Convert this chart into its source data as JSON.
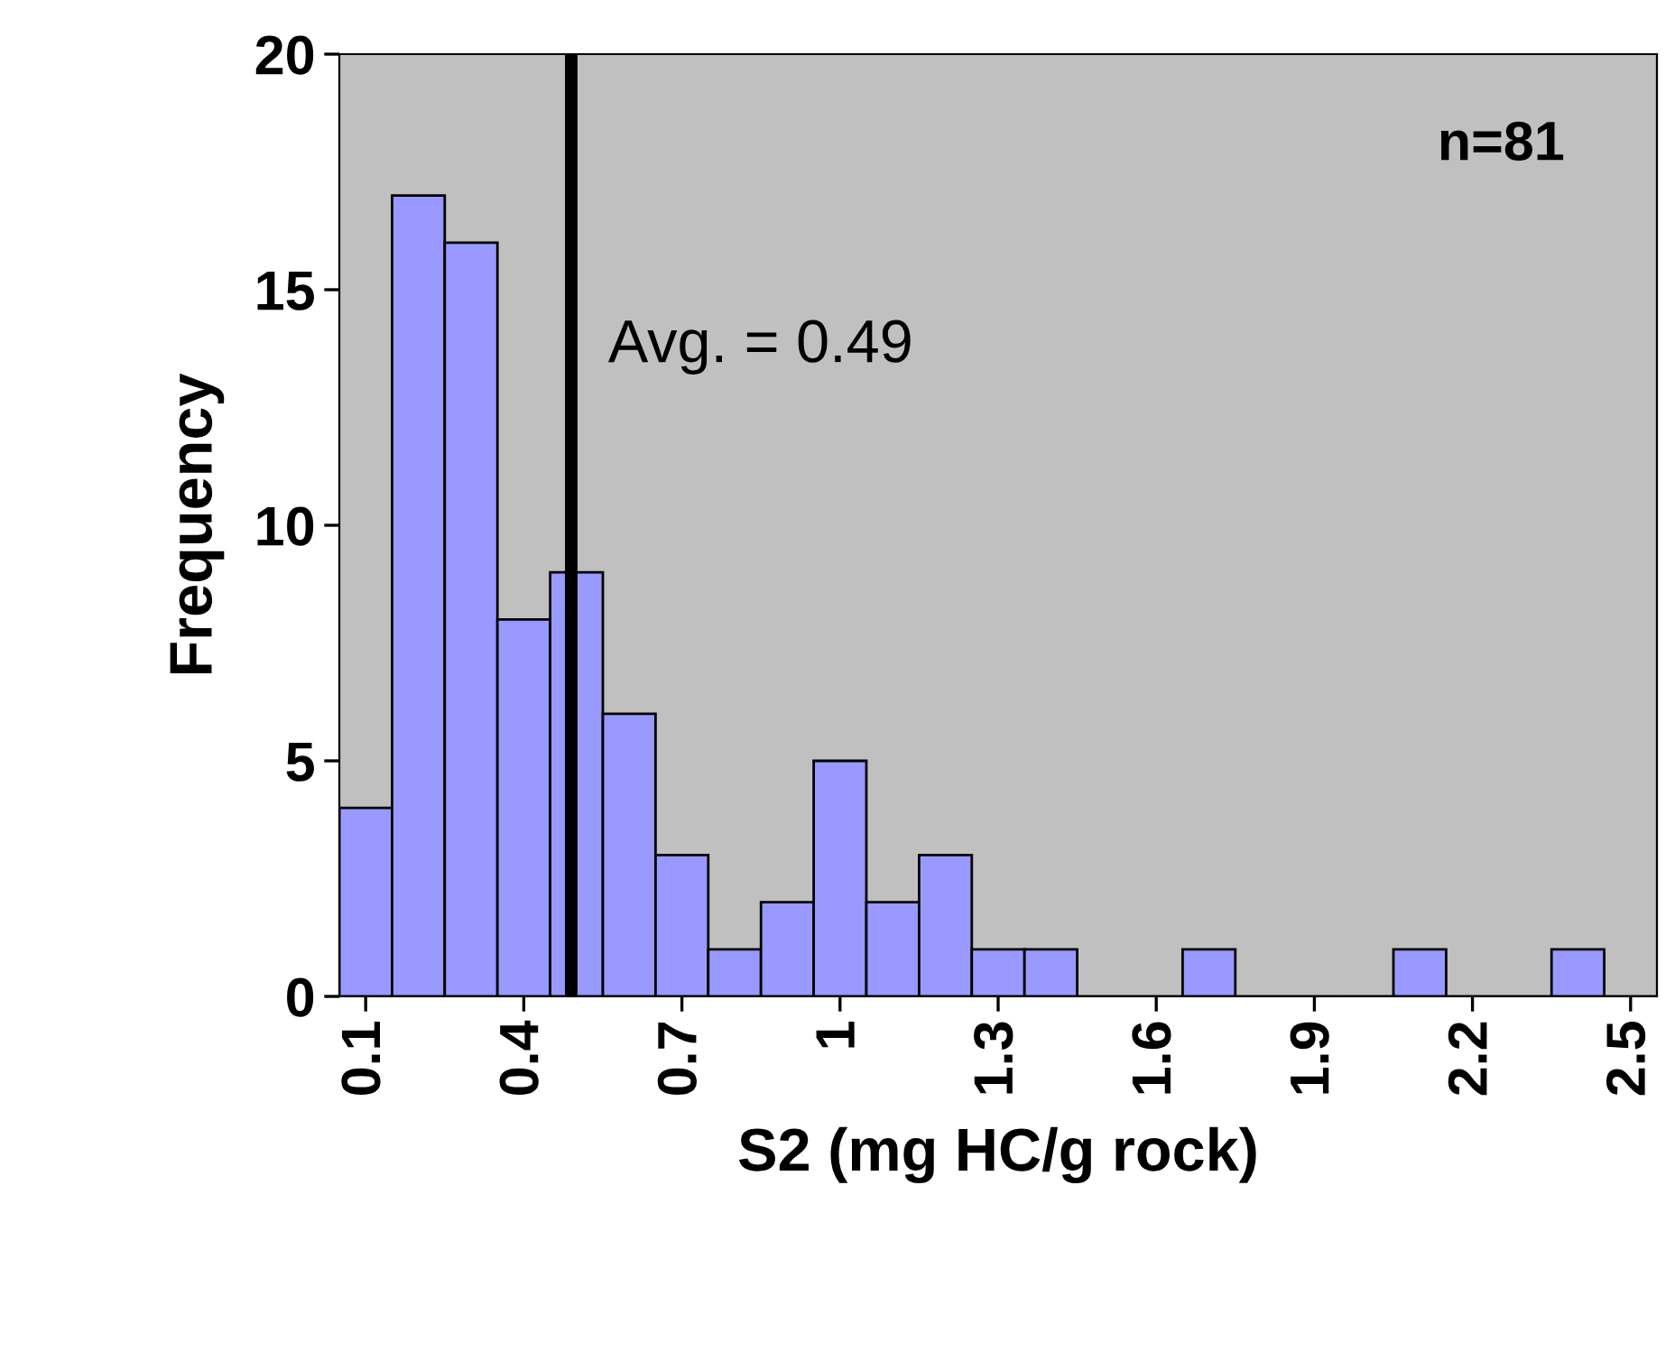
{
  "chart_data": {
    "type": "histogram",
    "xlabel": "S2 (mg HC/g rock)",
    "ylabel": "Frequency",
    "bins": [
      0.05,
      0.15,
      0.25,
      0.35,
      0.45,
      0.55,
      0.65,
      0.75,
      0.85,
      0.95,
      1.05,
      1.15,
      1.25,
      1.35,
      1.45,
      1.55,
      1.65,
      1.75,
      1.85,
      1.95,
      2.05,
      2.15,
      2.25,
      2.35,
      2.45,
      2.55
    ],
    "values": [
      4,
      17,
      16,
      8,
      9,
      6,
      3,
      1,
      2,
      5,
      2,
      3,
      1,
      1,
      0,
      0,
      1,
      0,
      0,
      0,
      1,
      0,
      0,
      1,
      0
    ],
    "color": "#9999ff",
    "xlim": [
      0.05,
      2.55
    ],
    "xticks": [
      0.1,
      0.4,
      0.7,
      1,
      1.3,
      1.6,
      1.9,
      2.2,
      2.5
    ],
    "ylim": [
      0,
      20
    ],
    "yticks": [
      0,
      5,
      10,
      15,
      20
    ],
    "ref_lines": [
      {
        "axis": "x",
        "value": 0.49,
        "label": "Avg. = 0.49",
        "color": "#000000"
      }
    ],
    "annotations": [
      "n=81"
    ],
    "grid": false
  }
}
